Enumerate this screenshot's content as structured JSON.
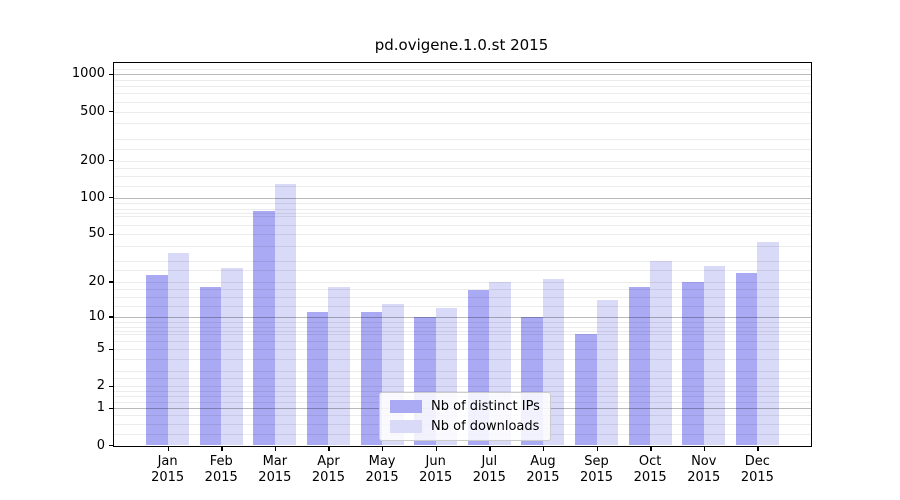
{
  "page": {
    "background": "#ffffff",
    "text_color": "#000000"
  },
  "chart_data": {
    "type": "bar",
    "title": "pd.ovigene.1.0.st 2015",
    "year": "2015",
    "categories": [
      "Jan",
      "Feb",
      "Mar",
      "Apr",
      "May",
      "Jun",
      "Jul",
      "Aug",
      "Sep",
      "Oct",
      "Nov",
      "Dec"
    ],
    "series": [
      {
        "name": "Nb of distinct IPs",
        "color": "#a9a9f4",
        "values": [
          23,
          18,
          78,
          11,
          11,
          10,
          17,
          10,
          7,
          18,
          20,
          24
        ]
      },
      {
        "name": "Nb of downloads",
        "color": "#d9d9f8",
        "values": [
          35,
          26,
          130,
          18,
          13,
          12,
          20,
          21,
          14,
          30,
          27,
          43
        ]
      }
    ],
    "xlabel": "",
    "ylabel": "",
    "y_scale": "log10(1+value)",
    "y_ticks": [
      0,
      1,
      2,
      5,
      10,
      20,
      50,
      100,
      200,
      500,
      1000
    ],
    "y_major_gridlines": [
      1,
      10,
      100,
      1000
    ],
    "ylim": [
      0,
      1230
    ],
    "grid": true,
    "legend_position": "lower center"
  }
}
